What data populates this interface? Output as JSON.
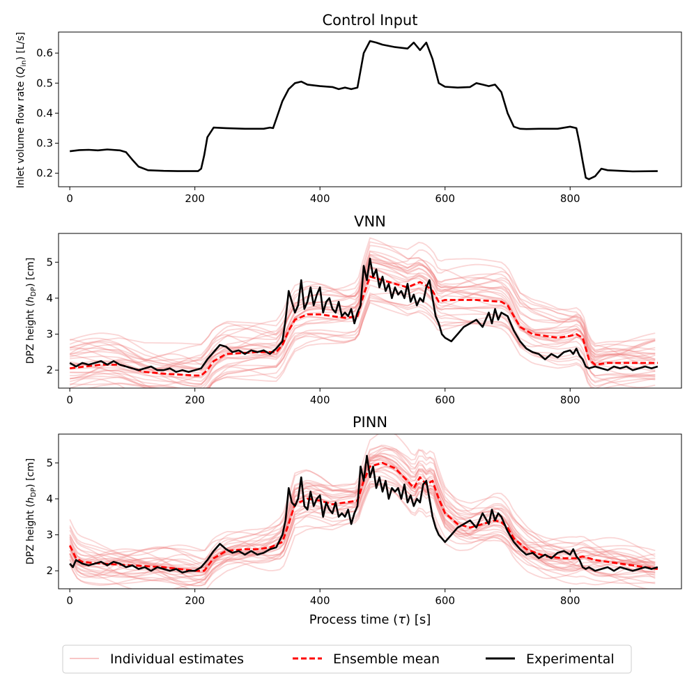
{
  "chart_data": [
    {
      "type": "line",
      "title": "Control Input",
      "xlabel": "",
      "ylabel": "Inlet volume flow rate (Q_in) [L/s]",
      "ylabel_main": "Inlet volume flow rate (",
      "ylabel_sym": "Q",
      "ylabel_sub": "in",
      "ylabel_tail": ") [L/s]",
      "xlim": [
        -18,
        978
      ],
      "ylim": [
        0.155,
        0.67
      ],
      "xticks": [
        0,
        200,
        400,
        600,
        800
      ],
      "xtick_labels": [
        "0",
        "200",
        "400",
        "600",
        "800"
      ],
      "yticks": [
        0.2,
        0.3,
        0.4,
        0.5,
        0.6
      ],
      "ytick_labels": [
        "0.2",
        "0.3",
        "0.4",
        "0.5",
        "0.6"
      ],
      "series": [
        {
          "name": "Experimental",
          "color": "#000000",
          "x": [
            0,
            15,
            30,
            45,
            60,
            80,
            90,
            100,
            110,
            125,
            150,
            175,
            200,
            205,
            210,
            215,
            220,
            230,
            250,
            280,
            310,
            320,
            325,
            330,
            340,
            350,
            360,
            370,
            380,
            400,
            420,
            430,
            440,
            450,
            460,
            470,
            480,
            490,
            500,
            520,
            540,
            550,
            560,
            570,
            580,
            590,
            600,
            620,
            640,
            650,
            660,
            670,
            680,
            690,
            700,
            710,
            720,
            730,
            750,
            780,
            800,
            810,
            815,
            820,
            825,
            830,
            840,
            850,
            860,
            880,
            900,
            940
          ],
          "values": [
            0.273,
            0.277,
            0.278,
            0.276,
            0.279,
            0.276,
            0.27,
            0.245,
            0.222,
            0.21,
            0.208,
            0.207,
            0.207,
            0.207,
            0.215,
            0.26,
            0.32,
            0.352,
            0.35,
            0.348,
            0.348,
            0.352,
            0.35,
            0.38,
            0.44,
            0.48,
            0.5,
            0.505,
            0.495,
            0.49,
            0.487,
            0.48,
            0.485,
            0.48,
            0.485,
            0.6,
            0.64,
            0.635,
            0.628,
            0.62,
            0.615,
            0.635,
            0.61,
            0.635,
            0.58,
            0.5,
            0.488,
            0.485,
            0.487,
            0.5,
            0.495,
            0.49,
            0.495,
            0.47,
            0.4,
            0.355,
            0.348,
            0.347,
            0.348,
            0.348,
            0.355,
            0.35,
            0.3,
            0.24,
            0.185,
            0.18,
            0.19,
            0.215,
            0.21,
            0.208,
            0.206,
            0.207
          ]
        }
      ]
    },
    {
      "type": "line",
      "title": "VNN",
      "xlabel": "",
      "ylabel": "DPZ height (h_DP) [cm]",
      "ylabel_main": "DPZ height (",
      "ylabel_sym": "h",
      "ylabel_sub": "DP",
      "ylabel_tail": ") [cm]",
      "xlim": [
        -18,
        978
      ],
      "ylim": [
        1.5,
        5.8
      ],
      "xticks": [
        0,
        200,
        400,
        600,
        800
      ],
      "xtick_labels": [
        "0",
        "200",
        "400",
        "600",
        "800"
      ],
      "yticks": [
        2,
        3,
        4,
        5
      ],
      "ytick_labels": [
        "2",
        "3",
        "4",
        "5"
      ],
      "band_seed": 17,
      "band_count": 30,
      "band_amplitude": 0.55,
      "series": [
        {
          "name": "Ensemble mean",
          "color": "#ff0000",
          "x": [
            0,
            50,
            80,
            100,
            120,
            150,
            200,
            210,
            220,
            230,
            250,
            300,
            330,
            340,
            350,
            360,
            380,
            400,
            440,
            460,
            470,
            480,
            500,
            540,
            560,
            570,
            580,
            590,
            600,
            650,
            690,
            700,
            710,
            720,
            740,
            780,
            800,
            810,
            820,
            830,
            840,
            860,
            900,
            940
          ],
          "values": [
            2.05,
            2.15,
            2.15,
            2.05,
            1.95,
            1.9,
            1.85,
            1.85,
            2.0,
            2.25,
            2.45,
            2.5,
            2.5,
            2.7,
            3.1,
            3.4,
            3.55,
            3.55,
            3.45,
            3.5,
            4.1,
            4.6,
            4.5,
            4.3,
            4.45,
            4.35,
            4.2,
            3.9,
            3.95,
            3.95,
            3.9,
            3.8,
            3.5,
            3.2,
            3.0,
            2.9,
            2.95,
            3.0,
            2.9,
            2.3,
            2.15,
            2.2,
            2.2,
            2.2
          ]
        },
        {
          "name": "Experimental",
          "color": "#000000",
          "x": [
            0,
            10,
            20,
            30,
            40,
            50,
            60,
            70,
            80,
            90,
            100,
            110,
            120,
            130,
            140,
            150,
            160,
            170,
            180,
            190,
            200,
            210,
            220,
            230,
            240,
            250,
            260,
            270,
            280,
            290,
            300,
            310,
            320,
            330,
            340,
            345,
            350,
            355,
            360,
            365,
            370,
            375,
            380,
            385,
            390,
            395,
            400,
            405,
            410,
            415,
            420,
            425,
            430,
            435,
            440,
            445,
            450,
            455,
            460,
            465,
            470,
            475,
            480,
            485,
            490,
            495,
            500,
            505,
            510,
            515,
            520,
            525,
            530,
            535,
            540,
            545,
            550,
            555,
            560,
            565,
            570,
            575,
            580,
            585,
            590,
            595,
            600,
            610,
            620,
            630,
            640,
            650,
            660,
            670,
            675,
            680,
            685,
            690,
            700,
            710,
            720,
            730,
            740,
            750,
            760,
            770,
            780,
            790,
            800,
            805,
            810,
            815,
            820,
            825,
            830,
            840,
            850,
            860,
            870,
            880,
            890,
            900,
            910,
            920,
            930,
            940
          ],
          "values": [
            2.2,
            2.1,
            2.2,
            2.15,
            2.2,
            2.25,
            2.15,
            2.25,
            2.15,
            2.1,
            2.05,
            2.0,
            2.05,
            2.1,
            2.0,
            2.0,
            2.05,
            1.95,
            2.0,
            1.95,
            2.0,
            2.05,
            2.3,
            2.5,
            2.7,
            2.65,
            2.5,
            2.55,
            2.45,
            2.55,
            2.5,
            2.55,
            2.45,
            2.6,
            2.8,
            3.4,
            4.2,
            3.9,
            3.6,
            3.8,
            4.5,
            3.7,
            3.9,
            4.3,
            3.8,
            4.1,
            4.3,
            3.6,
            3.9,
            4.0,
            3.7,
            3.6,
            3.9,
            3.5,
            3.6,
            3.5,
            3.7,
            3.3,
            3.6,
            3.8,
            4.9,
            4.5,
            5.1,
            4.6,
            4.8,
            4.3,
            4.6,
            4.2,
            4.4,
            4.0,
            4.3,
            4.1,
            4.2,
            4.0,
            4.4,
            3.9,
            4.1,
            3.8,
            4.0,
            3.9,
            4.3,
            4.5,
            4.0,
            3.5,
            3.3,
            3.0,
            2.9,
            2.8,
            3.0,
            3.2,
            3.3,
            3.4,
            3.2,
            3.6,
            3.3,
            3.7,
            3.4,
            3.6,
            3.5,
            3.1,
            2.8,
            2.6,
            2.5,
            2.45,
            2.3,
            2.45,
            2.35,
            2.5,
            2.55,
            2.45,
            2.6,
            2.4,
            2.3,
            2.1,
            2.05,
            2.1,
            2.05,
            2.0,
            2.1,
            2.05,
            2.1,
            2.0,
            2.05,
            2.1,
            2.05,
            2.1
          ]
        }
      ]
    },
    {
      "type": "line",
      "title": "PINN",
      "xlabel": "Process time (τ) [s]",
      "xlabel_main": "Process time (",
      "xlabel_sym": "τ",
      "xlabel_tail": ") [s]",
      "ylabel": "DPZ height (h_DP) [cm]",
      "ylabel_main": "DPZ height (",
      "ylabel_sym": "h",
      "ylabel_sub": "DP",
      "ylabel_tail": ") [cm]",
      "xlim": [
        -18,
        978
      ],
      "ylim": [
        1.5,
        5.8
      ],
      "xticks": [
        0,
        200,
        400,
        600,
        800
      ],
      "xtick_labels": [
        "0",
        "200",
        "400",
        "600",
        "800"
      ],
      "yticks": [
        2,
        3,
        4,
        5
      ],
      "ytick_labels": [
        "2",
        "3",
        "4",
        "5"
      ],
      "band_seed": 41,
      "band_count": 30,
      "band_amplitude": 0.35,
      "series": [
        {
          "name": "Ensemble mean",
          "color": "#ff0000",
          "x": [
            0,
            10,
            20,
            50,
            100,
            150,
            200,
            210,
            215,
            230,
            250,
            280,
            300,
            320,
            340,
            350,
            360,
            380,
            400,
            420,
            440,
            460,
            470,
            480,
            500,
            520,
            540,
            550,
            560,
            570,
            580,
            590,
            600,
            620,
            640,
            660,
            680,
            690,
            700,
            710,
            730,
            760,
            790,
            810,
            820,
            840,
            860,
            880,
            900,
            940
          ],
          "values": [
            2.7,
            2.35,
            2.25,
            2.2,
            2.15,
            2.1,
            2.0,
            2.0,
            2.0,
            2.35,
            2.55,
            2.6,
            2.6,
            2.65,
            2.8,
            3.3,
            3.85,
            4.0,
            3.95,
            3.85,
            3.9,
            3.95,
            4.5,
            4.9,
            5.0,
            4.85,
            4.5,
            4.3,
            4.6,
            4.4,
            4.5,
            4.0,
            3.6,
            3.3,
            3.2,
            3.3,
            3.4,
            3.35,
            3.2,
            2.9,
            2.6,
            2.4,
            2.35,
            2.35,
            2.4,
            2.3,
            2.25,
            2.2,
            2.15,
            2.05
          ]
        },
        {
          "name": "Experimental",
          "color": "#000000",
          "x": [
            0,
            5,
            10,
            20,
            30,
            40,
            50,
            60,
            70,
            80,
            90,
            100,
            110,
            120,
            130,
            140,
            150,
            160,
            170,
            180,
            190,
            200,
            210,
            220,
            230,
            240,
            250,
            260,
            270,
            280,
            290,
            300,
            310,
            320,
            330,
            340,
            345,
            350,
            355,
            360,
            365,
            370,
            375,
            380,
            385,
            390,
            395,
            400,
            405,
            410,
            415,
            420,
            425,
            430,
            435,
            440,
            445,
            450,
            455,
            460,
            465,
            470,
            475,
            480,
            485,
            490,
            495,
            500,
            505,
            510,
            515,
            520,
            525,
            530,
            535,
            540,
            545,
            550,
            555,
            560,
            565,
            570,
            575,
            580,
            585,
            590,
            595,
            600,
            610,
            620,
            630,
            640,
            650,
            660,
            670,
            675,
            680,
            685,
            690,
            700,
            710,
            720,
            730,
            740,
            750,
            760,
            770,
            780,
            790,
            800,
            805,
            810,
            815,
            820,
            825,
            830,
            840,
            850,
            860,
            870,
            880,
            890,
            900,
            910,
            920,
            930,
            940
          ],
          "values": [
            2.2,
            2.1,
            2.3,
            2.2,
            2.15,
            2.2,
            2.25,
            2.15,
            2.25,
            2.2,
            2.1,
            2.15,
            2.05,
            2.1,
            2.0,
            2.1,
            2.05,
            2.0,
            2.05,
            1.95,
            2.0,
            2.0,
            2.1,
            2.3,
            2.55,
            2.75,
            2.6,
            2.5,
            2.55,
            2.45,
            2.55,
            2.45,
            2.5,
            2.6,
            2.65,
            3.0,
            3.4,
            4.3,
            3.9,
            3.8,
            4.0,
            4.6,
            3.8,
            3.7,
            4.2,
            3.8,
            4.0,
            4.1,
            3.5,
            3.9,
            3.7,
            3.6,
            3.9,
            3.5,
            3.6,
            3.5,
            3.7,
            3.3,
            3.6,
            3.8,
            4.9,
            4.5,
            5.2,
            4.6,
            4.9,
            4.3,
            4.6,
            4.2,
            4.5,
            4.0,
            4.3,
            4.2,
            4.3,
            4.0,
            4.4,
            3.9,
            4.1,
            3.8,
            4.0,
            3.9,
            4.4,
            4.5,
            4.0,
            3.5,
            3.2,
            3.0,
            2.9,
            2.8,
            3.0,
            3.2,
            3.3,
            3.4,
            3.2,
            3.6,
            3.3,
            3.7,
            3.4,
            3.6,
            3.5,
            3.1,
            2.8,
            2.6,
            2.45,
            2.5,
            2.35,
            2.45,
            2.35,
            2.5,
            2.55,
            2.45,
            2.6,
            2.4,
            2.3,
            2.1,
            2.05,
            2.1,
            2.0,
            2.05,
            2.1,
            2.0,
            2.1,
            2.05,
            2.0,
            2.05,
            2.1,
            2.05,
            2.1
          ]
        }
      ]
    }
  ],
  "legend": {
    "items": [
      {
        "label": "Individual estimates",
        "color": "#f08080",
        "style": "solid-faint"
      },
      {
        "label": "Ensemble mean",
        "color": "#ff0000",
        "style": "dashed"
      },
      {
        "label": "Experimental",
        "color": "#000000",
        "style": "solid"
      }
    ]
  }
}
